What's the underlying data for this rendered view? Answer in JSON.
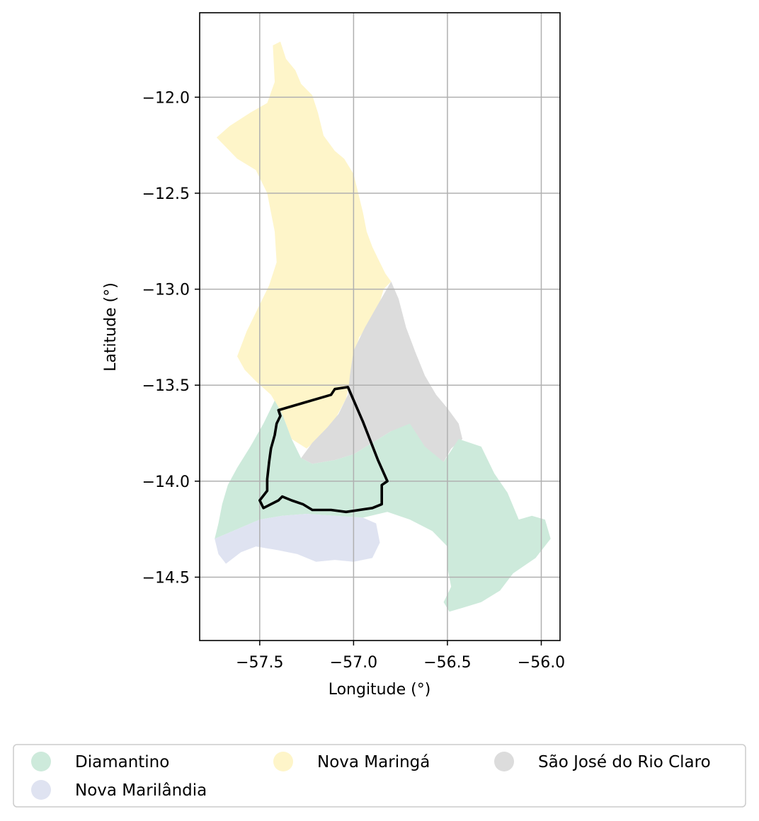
{
  "map": {
    "xlabel": "Longitude (°)",
    "ylabel": "Latitude (°)",
    "xlim": [
      -57.82,
      -55.9
    ],
    "ylim": [
      -14.83,
      -11.56
    ],
    "grid": true,
    "x_ticks": [
      {
        "value": -57.5,
        "label": "−57.5"
      },
      {
        "value": -57.0,
        "label": "−57.0"
      },
      {
        "value": -56.5,
        "label": "−56.5"
      },
      {
        "value": -56.0,
        "label": "−56.0"
      }
    ],
    "y_ticks": [
      {
        "value": -12.0,
        "label": "−12.0"
      },
      {
        "value": -12.5,
        "label": "−12.5"
      },
      {
        "value": -13.0,
        "label": "−13.0"
      },
      {
        "value": -13.5,
        "label": "−13.5"
      },
      {
        "value": -14.0,
        "label": "−14.0"
      },
      {
        "value": -14.5,
        "label": "−14.5"
      }
    ],
    "regions": [
      {
        "key": "nova-maringa",
        "name": "Nova Maringá",
        "color": "#fef5c9",
        "coords": [
          [
            -57.43,
            -11.73
          ],
          [
            -57.39,
            -11.71
          ],
          [
            -57.36,
            -11.8
          ],
          [
            -57.31,
            -11.86
          ],
          [
            -57.28,
            -11.93
          ],
          [
            -57.22,
            -11.99
          ],
          [
            -57.19,
            -12.08
          ],
          [
            -57.16,
            -12.2
          ],
          [
            -57.1,
            -12.28
          ],
          [
            -57.05,
            -12.32
          ],
          [
            -57.0,
            -12.4
          ],
          [
            -56.97,
            -12.52
          ],
          [
            -56.95,
            -12.6
          ],
          [
            -56.93,
            -12.7
          ],
          [
            -56.9,
            -12.78
          ],
          [
            -56.87,
            -12.84
          ],
          [
            -56.83,
            -12.92
          ],
          [
            -56.8,
            -12.96
          ],
          [
            -56.84,
            -13.0
          ],
          [
            -56.87,
            -13.1
          ],
          [
            -56.91,
            -13.18
          ],
          [
            -56.97,
            -13.25
          ],
          [
            -57.0,
            -13.35
          ],
          [
            -57.02,
            -13.48
          ],
          [
            -57.04,
            -13.57
          ],
          [
            -57.1,
            -13.68
          ],
          [
            -57.18,
            -13.77
          ],
          [
            -57.25,
            -13.83
          ],
          [
            -57.33,
            -13.78
          ],
          [
            -57.38,
            -13.65
          ],
          [
            -57.44,
            -13.55
          ],
          [
            -57.52,
            -13.48
          ],
          [
            -57.58,
            -13.42
          ],
          [
            -57.62,
            -13.35
          ],
          [
            -57.57,
            -13.22
          ],
          [
            -57.51,
            -13.1
          ],
          [
            -57.45,
            -12.98
          ],
          [
            -57.41,
            -12.86
          ],
          [
            -57.42,
            -12.7
          ],
          [
            -57.46,
            -12.5
          ],
          [
            -57.52,
            -12.38
          ],
          [
            -57.62,
            -12.32
          ],
          [
            -57.73,
            -12.21
          ],
          [
            -57.66,
            -12.15
          ],
          [
            -57.55,
            -12.08
          ],
          [
            -57.46,
            -12.03
          ],
          [
            -57.42,
            -11.92
          ]
        ]
      },
      {
        "key": "sao-jose-do-rio-claro",
        "name": "São José do Rio Claro",
        "color": "#dcdcdc",
        "coords": [
          [
            -56.8,
            -12.96
          ],
          [
            -56.76,
            -13.05
          ],
          [
            -56.72,
            -13.2
          ],
          [
            -56.67,
            -13.33
          ],
          [
            -56.62,
            -13.45
          ],
          [
            -56.56,
            -13.55
          ],
          [
            -56.5,
            -13.62
          ],
          [
            -56.44,
            -13.7
          ],
          [
            -56.42,
            -13.78
          ],
          [
            -56.48,
            -13.83
          ],
          [
            -56.52,
            -13.9
          ],
          [
            -56.6,
            -13.88
          ],
          [
            -56.7,
            -13.8
          ],
          [
            -56.8,
            -13.74
          ],
          [
            -56.9,
            -13.8
          ],
          [
            -57.0,
            -13.86
          ],
          [
            -57.1,
            -13.89
          ],
          [
            -57.22,
            -13.91
          ],
          [
            -57.28,
            -13.88
          ],
          [
            -57.22,
            -13.8
          ],
          [
            -57.14,
            -13.72
          ],
          [
            -57.08,
            -13.65
          ],
          [
            -57.03,
            -13.55
          ],
          [
            -57.02,
            -13.45
          ],
          [
            -57.0,
            -13.32
          ],
          [
            -56.94,
            -13.2
          ],
          [
            -56.87,
            -13.08
          ]
        ]
      },
      {
        "key": "diamantino",
        "name": "Diamantino",
        "color": "#cdeadb",
        "coords": [
          [
            -57.42,
            -13.58
          ],
          [
            -57.48,
            -13.7
          ],
          [
            -57.55,
            -13.82
          ],
          [
            -57.62,
            -13.93
          ],
          [
            -57.67,
            -14.02
          ],
          [
            -57.7,
            -14.12
          ],
          [
            -57.72,
            -14.22
          ],
          [
            -57.74,
            -14.3
          ],
          [
            -57.62,
            -14.25
          ],
          [
            -57.5,
            -14.2
          ],
          [
            -57.38,
            -14.18
          ],
          [
            -57.25,
            -14.17
          ],
          [
            -57.1,
            -14.18
          ],
          [
            -56.95,
            -14.19
          ],
          [
            -56.82,
            -14.16
          ],
          [
            -56.7,
            -14.2
          ],
          [
            -56.58,
            -14.26
          ],
          [
            -56.5,
            -14.34
          ],
          [
            -56.5,
            -14.45
          ],
          [
            -56.48,
            -14.55
          ],
          [
            -56.52,
            -14.63
          ],
          [
            -56.49,
            -14.68
          ],
          [
            -56.42,
            -14.66
          ],
          [
            -56.32,
            -14.63
          ],
          [
            -56.22,
            -14.57
          ],
          [
            -56.15,
            -14.48
          ],
          [
            -56.03,
            -14.4
          ],
          [
            -55.95,
            -14.3
          ],
          [
            -55.98,
            -14.2
          ],
          [
            -56.05,
            -14.18
          ],
          [
            -56.12,
            -14.2
          ],
          [
            -56.18,
            -14.06
          ],
          [
            -56.25,
            -13.96
          ],
          [
            -56.32,
            -13.82
          ],
          [
            -56.44,
            -13.78
          ],
          [
            -56.52,
            -13.9
          ],
          [
            -56.62,
            -13.82
          ],
          [
            -56.7,
            -13.7
          ],
          [
            -56.8,
            -13.74
          ],
          [
            -56.9,
            -13.8
          ],
          [
            -57.0,
            -13.86
          ],
          [
            -57.1,
            -13.89
          ],
          [
            -57.22,
            -13.91
          ],
          [
            -57.28,
            -13.88
          ],
          [
            -57.33,
            -13.78
          ],
          [
            -57.38,
            -13.65
          ]
        ]
      },
      {
        "key": "nova-marilandia",
        "name": "Nova Marilândia",
        "color": "#dfe3f1",
        "coords": [
          [
            -57.74,
            -14.3
          ],
          [
            -57.62,
            -14.25
          ],
          [
            -57.5,
            -14.2
          ],
          [
            -57.38,
            -14.18
          ],
          [
            -57.25,
            -14.17
          ],
          [
            -57.1,
            -14.18
          ],
          [
            -56.95,
            -14.19
          ],
          [
            -56.88,
            -14.22
          ],
          [
            -56.86,
            -14.32
          ],
          [
            -56.9,
            -14.4
          ],
          [
            -57.0,
            -14.42
          ],
          [
            -57.1,
            -14.41
          ],
          [
            -57.2,
            -14.42
          ],
          [
            -57.3,
            -14.38
          ],
          [
            -57.4,
            -14.36
          ],
          [
            -57.52,
            -14.34
          ],
          [
            -57.6,
            -14.37
          ],
          [
            -57.68,
            -14.43
          ],
          [
            -57.72,
            -14.38
          ]
        ]
      }
    ],
    "outline": {
      "color": "#000000",
      "coords": [
        [
          -57.4,
          -13.63
        ],
        [
          -57.26,
          -13.59
        ],
        [
          -57.12,
          -13.55
        ],
        [
          -57.1,
          -13.52
        ],
        [
          -57.03,
          -13.51
        ],
        [
          -56.99,
          -13.6
        ],
        [
          -56.95,
          -13.69
        ],
        [
          -56.91,
          -13.79
        ],
        [
          -56.87,
          -13.89
        ],
        [
          -56.82,
          -14.0
        ],
        [
          -56.85,
          -14.02
        ],
        [
          -56.85,
          -14.08
        ],
        [
          -56.85,
          -14.12
        ],
        [
          -56.9,
          -14.14
        ],
        [
          -57.04,
          -14.16
        ],
        [
          -57.12,
          -14.15
        ],
        [
          -57.22,
          -14.15
        ],
        [
          -57.27,
          -14.12
        ],
        [
          -57.33,
          -14.1
        ],
        [
          -57.38,
          -14.08
        ],
        [
          -57.4,
          -14.1
        ],
        [
          -57.44,
          -14.12
        ],
        [
          -57.48,
          -14.14
        ],
        [
          -57.5,
          -14.1
        ],
        [
          -57.46,
          -14.05
        ],
        [
          -57.46,
          -13.99
        ],
        [
          -57.45,
          -13.9
        ],
        [
          -57.44,
          -13.83
        ],
        [
          -57.42,
          -13.76
        ],
        [
          -57.41,
          -13.7
        ],
        [
          -57.39,
          -13.66
        ]
      ]
    },
    "legend": {
      "placement": "bottom",
      "items": [
        {
          "label": "Diamantino",
          "color": "#cdeadb"
        },
        {
          "label": "Nova Maringá",
          "color": "#fef5c9"
        },
        {
          "label": "São José do Rio Claro",
          "color": "#dcdcdc"
        },
        {
          "label": "Nova Marilândia",
          "color": "#dfe3f1"
        }
      ]
    }
  }
}
